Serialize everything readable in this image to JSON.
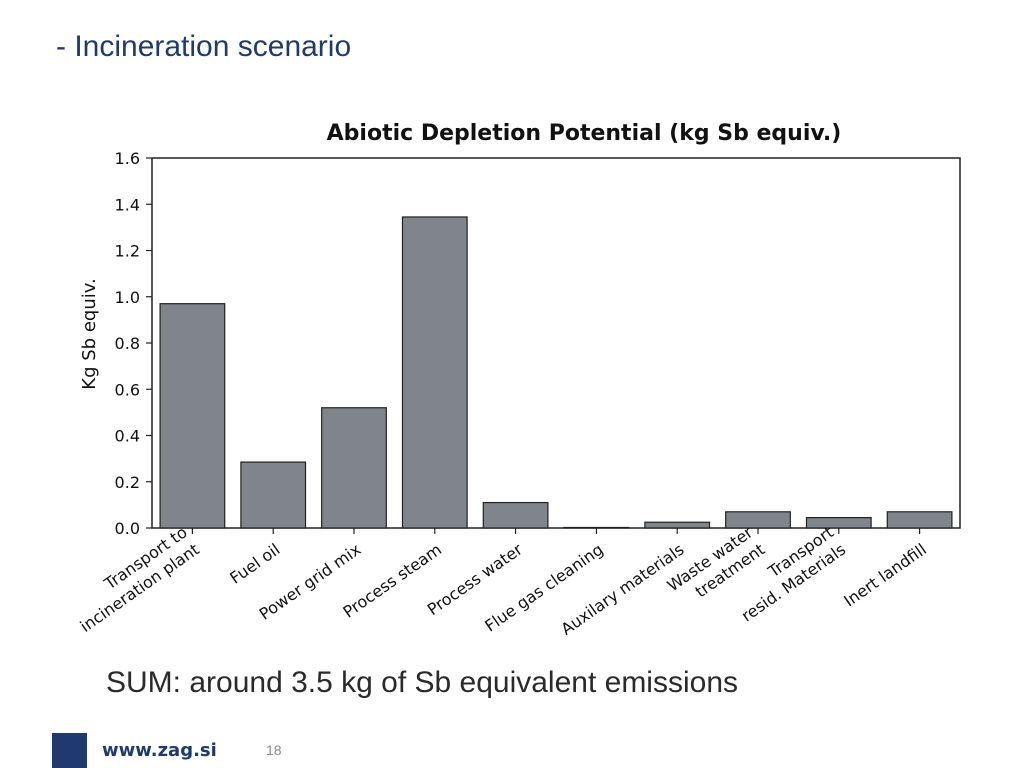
{
  "slide": {
    "title": "- Incineration scenario",
    "summary": "SUM: around 3.5 kg of Sb equivalent emissions",
    "footer_url": "www.zag.si",
    "page_number": "18"
  },
  "colors": {
    "title_color": "#1f3a6e",
    "bar_fill": "#7f858a",
    "bar_stroke": "#222222",
    "brand_square": "#1f3a6e"
  },
  "chart_data": {
    "type": "bar",
    "title": "Abiotic Depletion Potential (kg Sb equiv.)",
    "ylabel": "Kg Sb equiv.",
    "xlabel": "",
    "ylim": [
      0,
      1.6
    ],
    "yticks": [
      "0.0",
      "0.2",
      "0.4",
      "0.6",
      "0.8",
      "1.0",
      "1.2",
      "1.4",
      "1.6"
    ],
    "categories": [
      [
        "Transport to",
        "incineration plant"
      ],
      [
        "Fuel oil"
      ],
      [
        "Power grid mix"
      ],
      [
        "Process steam"
      ],
      [
        "Process water"
      ],
      [
        "Flue gas cleaning"
      ],
      [
        "Auxilary materials"
      ],
      [
        "Waste water",
        "treatment"
      ],
      [
        "Transport",
        "resid. Materials"
      ],
      [
        "Inert landfill"
      ]
    ],
    "values": [
      0.97,
      0.285,
      0.52,
      1.345,
      0.11,
      0.0,
      0.025,
      0.07,
      0.045,
      0.07
    ],
    "grid": false,
    "legend": "none"
  }
}
